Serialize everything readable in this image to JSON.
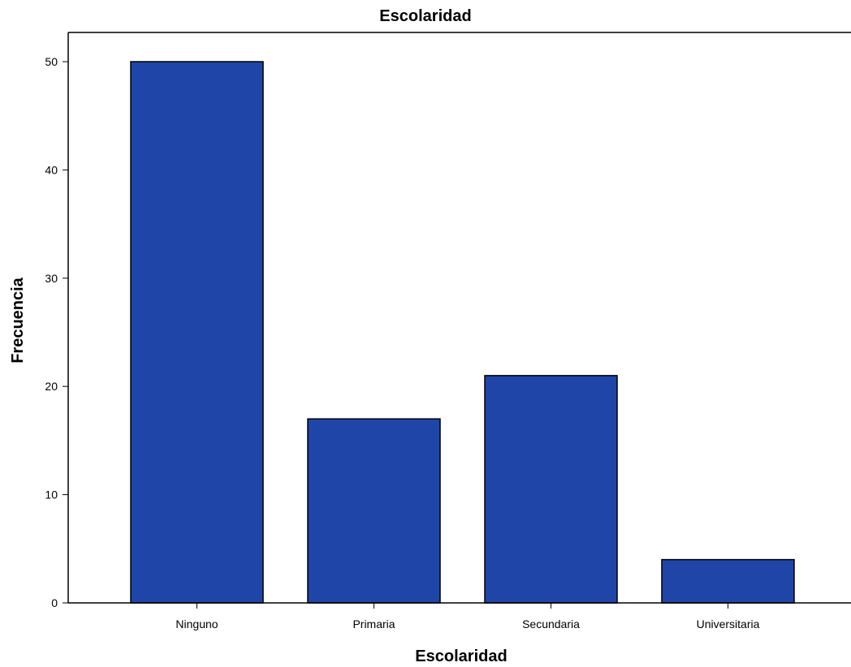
{
  "chart_data": {
    "type": "bar",
    "title": "Escolaridad",
    "xlabel": "Escolaridad",
    "ylabel": "Frecuencia",
    "categories": [
      "Ninguno",
      "Primaria",
      "Secundaria",
      "Universitaria"
    ],
    "values": [
      50,
      17,
      21,
      4
    ],
    "ylim": [
      0,
      52.7
    ],
    "yticks": [
      0,
      10,
      20,
      30,
      40,
      50
    ],
    "grid": false,
    "bar_color": "#1f45a8",
    "bar_edge_color": "#000000"
  }
}
